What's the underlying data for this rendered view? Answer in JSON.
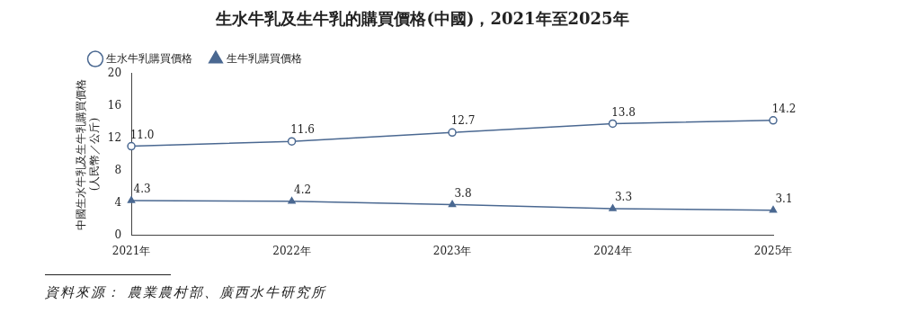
{
  "chart_data": {
    "type": "line",
    "title": "生水牛乳及生牛乳的購買價格(中國)，2021年至2025年",
    "ylabel": "中國生水牛乳及生牛乳購買價格\n(人民幣／公斤)",
    "categories": [
      "2021年",
      "2022年",
      "2023年",
      "2024年",
      "2025年"
    ],
    "series": [
      {
        "name": "生水牛乳購買價格",
        "color": "#4a6891",
        "marker": "circle",
        "values": [
          11.0,
          11.6,
          12.7,
          13.8,
          14.2
        ],
        "value_labels": [
          "11.0",
          "11.6",
          "12.7",
          "13.8",
          "14.2"
        ]
      },
      {
        "name": "生牛乳購買價格",
        "color": "#4a6891",
        "marker": "triangle",
        "values": [
          4.3,
          4.2,
          3.8,
          3.3,
          3.1
        ],
        "value_labels": [
          "4.3",
          "4.2",
          "3.8",
          "3.3",
          "3.1"
        ]
      }
    ],
    "ylim": [
      0,
      20
    ],
    "yticks": [
      0,
      4,
      8,
      12,
      16,
      20
    ],
    "legend": "top left",
    "grid": false,
    "line_style": "solid",
    "annotations": [
      "資料來源： 農業農村部、廣西水牛研究所"
    ]
  }
}
